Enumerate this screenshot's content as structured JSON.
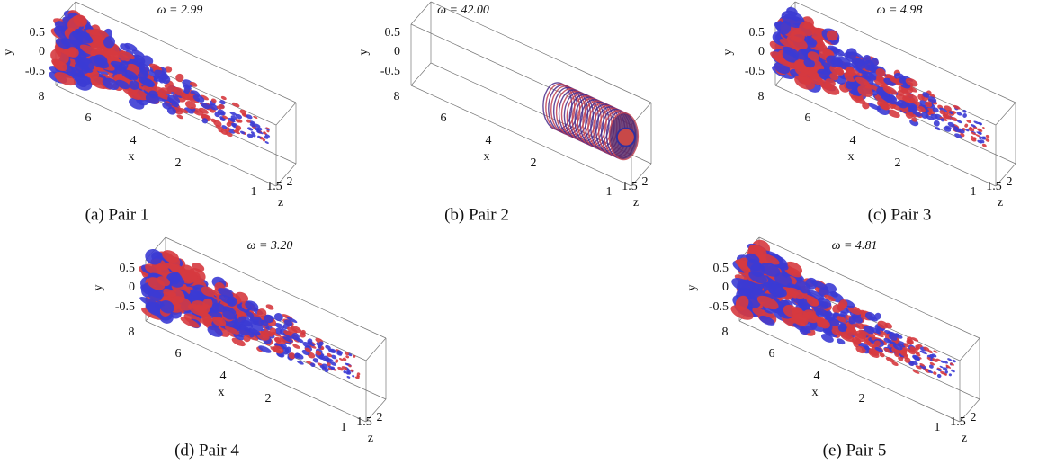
{
  "panels": [
    {
      "title": "ω = 2.99",
      "caption": "(a) Pair 1",
      "y_label": "y",
      "x_label": "x",
      "z_label": "z",
      "yticks": [
        "0.5",
        "0",
        "-0.5"
      ],
      "xticks": [
        "8",
        "6",
        "4",
        "2"
      ],
      "zticks": [
        "1",
        "1.5",
        "2"
      ]
    },
    {
      "title": "ω = 42.00",
      "caption": "(b) Pair 2",
      "y_label": "y",
      "x_label": "x",
      "z_label": "z",
      "yticks": [
        "0.5",
        "0",
        "-0.5"
      ],
      "xticks": [
        "8",
        "6",
        "4",
        "2"
      ],
      "zticks": [
        "1",
        "1.5",
        "2"
      ]
    },
    {
      "title": "ω = 4.98",
      "caption": "(c) Pair 3",
      "y_label": "y",
      "x_label": "x",
      "z_label": "z",
      "yticks": [
        "0.5",
        "0",
        "-0.5"
      ],
      "xticks": [
        "8",
        "6",
        "4",
        "2"
      ],
      "zticks": [
        "1",
        "1.5",
        "2"
      ]
    },
    {
      "title": "ω = 3.20",
      "caption": "(d) Pair 4",
      "y_label": "y",
      "x_label": "x",
      "z_label": "z",
      "yticks": [
        "0.5",
        "0",
        "-0.5"
      ],
      "xticks": [
        "8",
        "6",
        "4",
        "2"
      ],
      "zticks": [
        "1",
        "1.5",
        "2"
      ]
    },
    {
      "title": "ω = 4.81",
      "caption": "(e) Pair 5",
      "y_label": "y",
      "x_label": "x",
      "z_label": "z",
      "yticks": [
        "0.5",
        "0",
        "-0.5"
      ],
      "xticks": [
        "8",
        "6",
        "4",
        "2"
      ],
      "zticks": [
        "1",
        "1.5",
        "2"
      ]
    }
  ]
}
